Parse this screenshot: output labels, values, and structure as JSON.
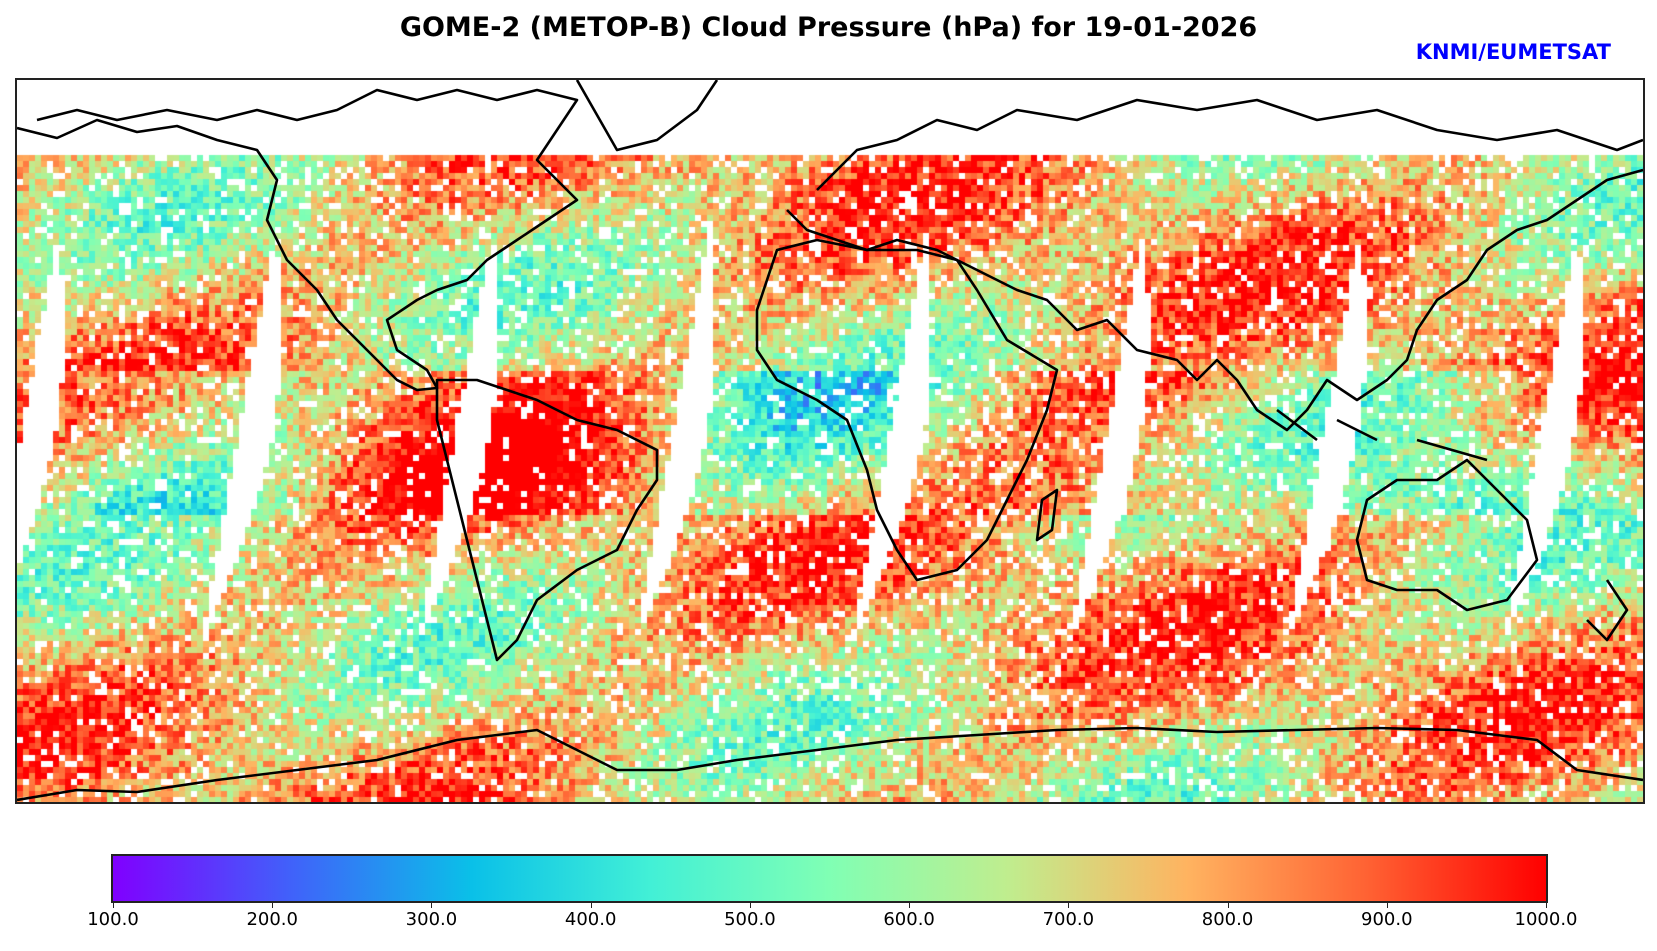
{
  "title": "GOME-2 (METOP-B) Cloud Pressure (hPa) for 19-01-2026",
  "credit": "KNMI/EUMETSAT",
  "map": {
    "projection": "plate-carree",
    "variable": "Cloud Pressure",
    "units": "hPa",
    "coastline_color": "#000000",
    "missing_color": "#ffffff"
  },
  "colorbar": {
    "colormap": "rainbow",
    "vmin": 100.0,
    "vmax": 1000.0,
    "stops": [
      "#8000ff",
      "#4062fa",
      "#0ac0e8",
      "#42f0d6",
      "#80ffb4",
      "#c0ed8e",
      "#ffb360",
      "#ff6233",
      "#ff0000"
    ],
    "ticks": [
      "100.0",
      "200.0",
      "300.0",
      "400.0",
      "500.0",
      "600.0",
      "700.0",
      "800.0",
      "900.0",
      "1000.0"
    ]
  }
}
